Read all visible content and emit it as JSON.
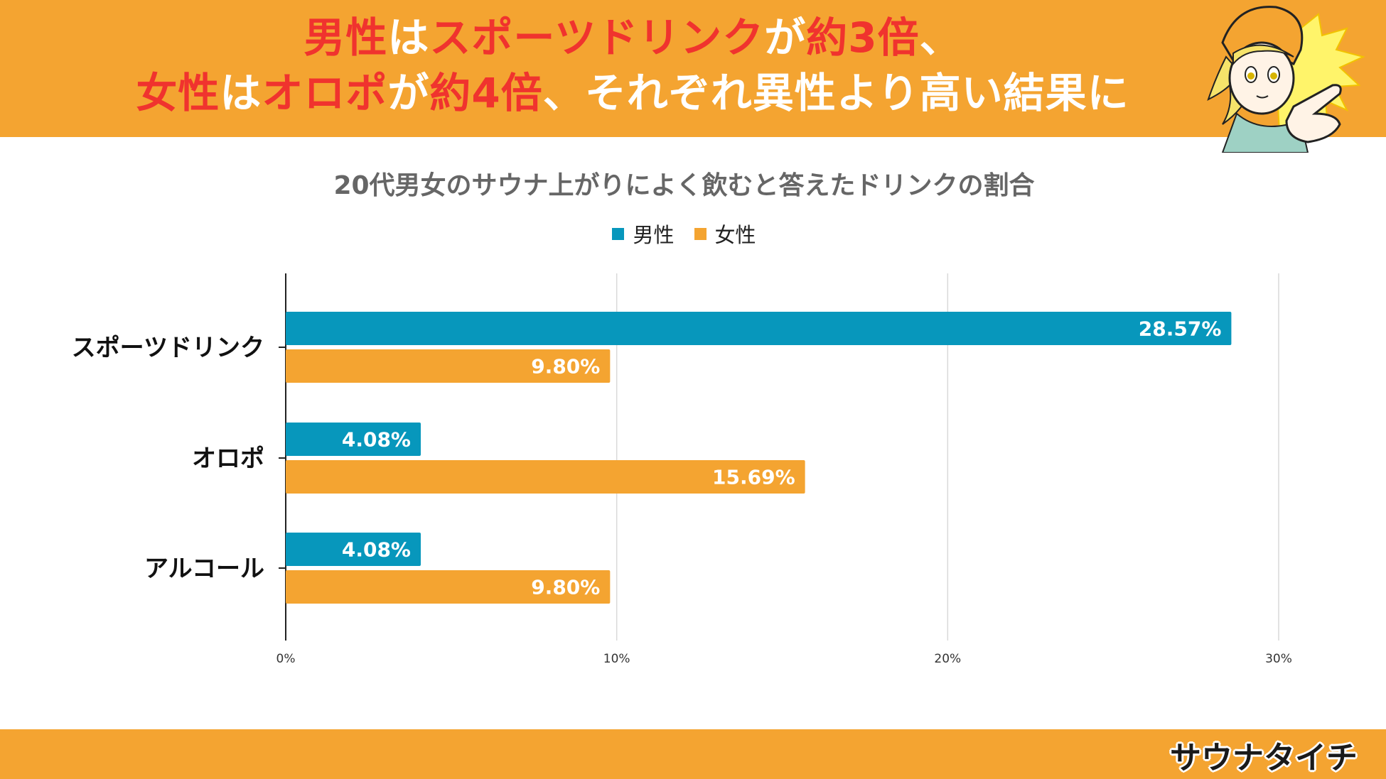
{
  "header": {
    "line1": [
      {
        "text": "男性",
        "red": true
      },
      {
        "text": "は",
        "red": false
      },
      {
        "text": "スポーツドリンク",
        "red": true
      },
      {
        "text": "が",
        "red": false
      },
      {
        "text": "約3倍",
        "red": true
      },
      {
        "text": "、",
        "red": false
      }
    ],
    "line2": [
      {
        "text": "女性",
        "red": true
      },
      {
        "text": "は",
        "red": false
      },
      {
        "text": "オロポ",
        "red": true
      },
      {
        "text": "が",
        "red": false
      },
      {
        "text": "約4倍",
        "red": true
      },
      {
        "text": "、それぞれ異性より高い結果に",
        "red": false
      }
    ]
  },
  "logo": {
    "text": "サウナタイチ"
  },
  "colors": {
    "band": "#f4a431",
    "headline_white": "#ffffff",
    "headline_red": "#f0332e",
    "male": "#0797bc",
    "female": "#f4a431",
    "grid": "#d9d9d9",
    "axis": "#222222"
  },
  "chart_data": {
    "type": "bar",
    "orientation": "horizontal",
    "title": "20代男女のサウナ上がりによく飲むと答えたドリンクの割合",
    "legend_position": "top",
    "categories": [
      "スポーツドリンク",
      "オロポ",
      "アルコール"
    ],
    "series": [
      {
        "name": "男性",
        "color": "#0797bc",
        "values": [
          28.57,
          4.08,
          4.08
        ],
        "labels": [
          "28.57%",
          "4.08%",
          "4.08%"
        ]
      },
      {
        "name": "女性",
        "color": "#f4a431",
        "values": [
          9.8,
          15.69,
          9.8
        ],
        "labels": [
          "9.80%",
          "15.69%",
          "9.80%"
        ]
      }
    ],
    "xlim": [
      0,
      30
    ],
    "xticks": [
      0,
      10,
      20,
      30
    ],
    "xtick_labels": [
      "0%",
      "10%",
      "20%",
      "30%"
    ],
    "grid": true
  }
}
